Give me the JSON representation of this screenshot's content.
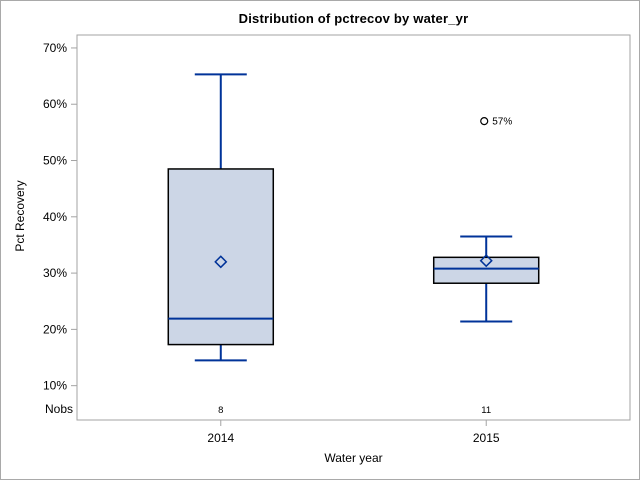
{
  "chart_data": {
    "type": "boxplot",
    "title": "Distribution of pctrecov by water_yr",
    "xlabel": "Water year",
    "ylabel": "Pct Recovery",
    "nobs_label": "Nobs",
    "ylim": [
      3.9,
      72.3
    ],
    "grid": false,
    "legend": "none",
    "yticks": [
      {
        "value": 10,
        "label": "10%"
      },
      {
        "value": 20,
        "label": "20%"
      },
      {
        "value": 30,
        "label": "30%"
      },
      {
        "value": 40,
        "label": "40%"
      },
      {
        "value": 50,
        "label": "50%"
      },
      {
        "value": 60,
        "label": "60%"
      },
      {
        "value": 70,
        "label": "70%"
      }
    ],
    "groups": [
      {
        "category": "2014",
        "nobs": "8",
        "whisker_low": 14.5,
        "q1": 17.3,
        "median": 21.9,
        "q3": 48.5,
        "whisker_high": 65.3,
        "mean": 32.0,
        "outliers": []
      },
      {
        "category": "2015",
        "nobs": "11",
        "whisker_low": 21.4,
        "q1": 28.2,
        "median": 30.8,
        "q3": 32.8,
        "whisker_high": 36.5,
        "mean": 32.2,
        "outliers": [
          {
            "value": 57,
            "label": "57%"
          }
        ]
      }
    ],
    "colors": {
      "box_fill": "#ccd6e6",
      "box_stroke": "#000000",
      "line_blue": "#003399",
      "mean_marker": "#003399",
      "outlier": "#000000",
      "frame_gray": "#a3a3a3",
      "text": "#000000",
      "background": "#ffffff"
    }
  }
}
